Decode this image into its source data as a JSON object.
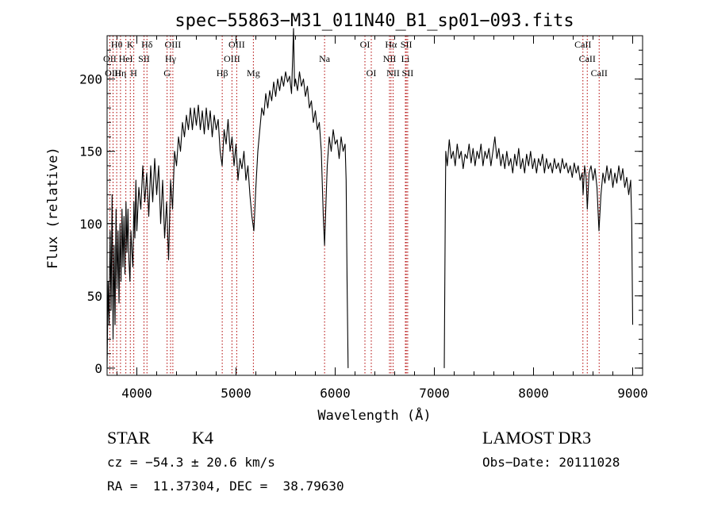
{
  "chart_data": {
    "type": "line",
    "title": "spec−55863−M31_011N40_B1_sp01−093.fits",
    "xlabel": "Wavelength (Å)",
    "ylabel": "Flux (relative)",
    "xlim": [
      3700,
      9100
    ],
    "ylim": [
      -5,
      230
    ],
    "xticks": [
      4000,
      5000,
      6000,
      7000,
      8000,
      9000
    ],
    "yticks": [
      0,
      50,
      100,
      150,
      200
    ],
    "x_minor_step": 200,
    "y_minor_step": 10,
    "lines": [
      {
        "label": "Hθ",
        "wave": 3797,
        "row": 0
      },
      {
        "label": "OII",
        "wave": 3727,
        "row": 1
      },
      {
        "label": "OIII",
        "wave": 3760,
        "row": 2
      },
      {
        "label": "Hη",
        "wave": 3835,
        "row": 2
      },
      {
        "label": "HeI",
        "wave": 3889,
        "row": 1
      },
      {
        "label": "K",
        "wave": 3934,
        "row": 0
      },
      {
        "label": "H",
        "wave": 3969,
        "row": 2
      },
      {
        "label": "SII",
        "wave": 4072,
        "row": 1
      },
      {
        "label": "Hδ",
        "wave": 4102,
        "row": 0
      },
      {
        "label": "OIII",
        "wave": 4363,
        "row": 0
      },
      {
        "label": "Hγ",
        "wave": 4340,
        "row": 1
      },
      {
        "label": "G",
        "wave": 4305,
        "row": 2
      },
      {
        "label": "Hβ",
        "wave": 4861,
        "row": 2
      },
      {
        "label": "OIII",
        "wave": 5007,
        "row": 0
      },
      {
        "label": "OIII",
        "wave": 4959,
        "row": 1
      },
      {
        "label": "Mg",
        "wave": 5175,
        "row": 2
      },
      {
        "label": "Na",
        "wave": 5893,
        "row": 1
      },
      {
        "label": "OI",
        "wave": 6300,
        "row": 0
      },
      {
        "label": "OI",
        "wave": 6364,
        "row": 2
      },
      {
        "label": "Hα",
        "wave": 6563,
        "row": 0
      },
      {
        "label": "NII",
        "wave": 6548,
        "row": 1
      },
      {
        "label": "NII",
        "wave": 6584,
        "row": 2
      },
      {
        "label": "SII",
        "wave": 6717,
        "row": 0
      },
      {
        "label": "Li",
        "wave": 6708,
        "row": 1
      },
      {
        "label": "SII",
        "wave": 6731,
        "row": 2
      },
      {
        "label": "CaII",
        "wave": 8498,
        "row": 0
      },
      {
        "label": "CaII",
        "wave": 8542,
        "row": 1
      },
      {
        "label": "CaII",
        "wave": 8662,
        "row": 2
      }
    ],
    "spectrum_segments": [
      [
        [
          3700,
          0
        ],
        [
          3710,
          60
        ],
        [
          3720,
          30
        ],
        [
          3730,
          95
        ],
        [
          3740,
          40
        ],
        [
          3750,
          120
        ],
        [
          3760,
          20
        ],
        [
          3770,
          85
        ],
        [
          3780,
          30
        ],
        [
          3790,
          110
        ],
        [
          3800,
          55
        ],
        [
          3810,
          95
        ],
        [
          3820,
          45
        ],
        [
          3830,
          100
        ],
        [
          3840,
          60
        ],
        [
          3850,
          110
        ],
        [
          3860,
          70
        ],
        [
          3870,
          105
        ],
        [
          3880,
          65
        ],
        [
          3890,
          115
        ],
        [
          3900,
          80
        ],
        [
          3910,
          110
        ],
        [
          3920,
          75
        ],
        [
          3930,
          60
        ],
        [
          3940,
          95
        ],
        [
          3950,
          80
        ],
        [
          3960,
          70
        ],
        [
          3970,
          115
        ],
        [
          3980,
          90
        ],
        [
          3990,
          130
        ],
        [
          4000,
          95
        ],
        [
          4020,
          125
        ],
        [
          4040,
          110
        ],
        [
          4060,
          140
        ],
        [
          4080,
          115
        ],
        [
          4100,
          135
        ],
        [
          4120,
          105
        ],
        [
          4140,
          140
        ],
        [
          4160,
          115
        ],
        [
          4180,
          145
        ],
        [
          4200,
          120
        ],
        [
          4220,
          140
        ],
        [
          4240,
          100
        ],
        [
          4260,
          130
        ],
        [
          4280,
          90
        ],
        [
          4300,
          115
        ],
        [
          4320,
          75
        ],
        [
          4340,
          130
        ],
        [
          4360,
          110
        ],
        [
          4380,
          150
        ],
        [
          4400,
          140
        ],
        [
          4420,
          160
        ],
        [
          4440,
          150
        ],
        [
          4460,
          170
        ],
        [
          4480,
          160
        ],
        [
          4500,
          175
        ],
        [
          4520,
          165
        ],
        [
          4540,
          180
        ],
        [
          4560,
          165
        ],
        [
          4580,
          180
        ],
        [
          4600,
          168
        ],
        [
          4620,
          182
        ],
        [
          4640,
          165
        ],
        [
          4660,
          178
        ],
        [
          4680,
          162
        ],
        [
          4700,
          180
        ],
        [
          4720,
          165
        ],
        [
          4740,
          178
        ],
        [
          4760,
          160
        ],
        [
          4780,
          175
        ],
        [
          4800,
          165
        ],
        [
          4820,
          172
        ],
        [
          4840,
          150
        ],
        [
          4860,
          140
        ],
        [
          4880,
          165
        ],
        [
          4900,
          155
        ],
        [
          4920,
          172
        ],
        [
          4940,
          150
        ],
        [
          4960,
          160
        ],
        [
          4980,
          140
        ],
        [
          5000,
          155
        ],
        [
          5020,
          130
        ],
        [
          5040,
          145
        ],
        [
          5060,
          138
        ],
        [
          5080,
          150
        ],
        [
          5100,
          130
        ],
        [
          5120,
          140
        ],
        [
          5140,
          120
        ],
        [
          5160,
          105
        ],
        [
          5180,
          95
        ],
        [
          5200,
          125
        ],
        [
          5220,
          150
        ],
        [
          5240,
          165
        ],
        [
          5260,
          180
        ],
        [
          5280,
          175
        ],
        [
          5300,
          190
        ],
        [
          5320,
          180
        ],
        [
          5340,
          192
        ],
        [
          5360,
          185
        ],
        [
          5380,
          198
        ],
        [
          5400,
          188
        ],
        [
          5420,
          200
        ],
        [
          5440,
          192
        ],
        [
          5460,
          202
        ],
        [
          5480,
          195
        ],
        [
          5500,
          205
        ],
        [
          5520,
          198
        ],
        [
          5540,
          202
        ],
        [
          5560,
          190
        ],
        [
          5580,
          235
        ],
        [
          5590,
          195
        ],
        [
          5600,
          200
        ],
        [
          5620,
          192
        ],
        [
          5640,
          205
        ],
        [
          5660,
          195
        ],
        [
          5680,
          200
        ],
        [
          5700,
          188
        ],
        [
          5720,
          195
        ],
        [
          5740,
          180
        ],
        [
          5760,
          185
        ],
        [
          5780,
          170
        ],
        [
          5800,
          178
        ],
        [
          5820,
          165
        ],
        [
          5840,
          170
        ],
        [
          5860,
          150
        ],
        [
          5880,
          105
        ],
        [
          5893,
          85
        ],
        [
          5905,
          110
        ],
        [
          5920,
          140
        ],
        [
          5940,
          160
        ],
        [
          5960,
          150
        ],
        [
          5980,
          165
        ],
        [
          6000,
          155
        ],
        [
          6020,
          158
        ],
        [
          6040,
          145
        ],
        [
          6060,
          160
        ],
        [
          6080,
          150
        ],
        [
          6100,
          155
        ],
        [
          6110,
          130
        ],
        [
          6120,
          60
        ],
        [
          6130,
          0
        ]
      ],
      [
        [
          7100,
          0
        ],
        [
          7110,
          110
        ],
        [
          7115,
          150
        ],
        [
          7130,
          140
        ],
        [
          7150,
          158
        ],
        [
          7170,
          145
        ],
        [
          7190,
          150
        ],
        [
          7210,
          140
        ],
        [
          7230,
          155
        ],
        [
          7250,
          145
        ],
        [
          7270,
          150
        ],
        [
          7290,
          138
        ],
        [
          7310,
          148
        ],
        [
          7330,
          145
        ],
        [
          7350,
          155
        ],
        [
          7370,
          142
        ],
        [
          7390,
          152
        ],
        [
          7410,
          140
        ],
        [
          7430,
          150
        ],
        [
          7450,
          145
        ],
        [
          7470,
          155
        ],
        [
          7490,
          140
        ],
        [
          7510,
          150
        ],
        [
          7530,
          145
        ],
        [
          7550,
          152
        ],
        [
          7570,
          140
        ],
        [
          7590,
          150
        ],
        [
          7610,
          160
        ],
        [
          7630,
          145
        ],
        [
          7650,
          152
        ],
        [
          7670,
          140
        ],
        [
          7690,
          148
        ],
        [
          7710,
          138
        ],
        [
          7730,
          150
        ],
        [
          7750,
          140
        ],
        [
          7770,
          145
        ],
        [
          7790,
          135
        ],
        [
          7810,
          148
        ],
        [
          7830,
          140
        ],
        [
          7850,
          152
        ],
        [
          7870,
          138
        ],
        [
          7890,
          145
        ],
        [
          7910,
          135
        ],
        [
          7930,
          148
        ],
        [
          7950,
          140
        ],
        [
          7970,
          150
        ],
        [
          7990,
          138
        ],
        [
          8010,
          145
        ],
        [
          8030,
          135
        ],
        [
          8050,
          145
        ],
        [
          8070,
          140
        ],
        [
          8090,
          148
        ],
        [
          8110,
          135
        ],
        [
          8130,
          145
        ],
        [
          8150,
          138
        ],
        [
          8170,
          142
        ],
        [
          8190,
          135
        ],
        [
          8210,
          145
        ],
        [
          8230,
          138
        ],
        [
          8250,
          142
        ],
        [
          8270,
          135
        ],
        [
          8290,
          145
        ],
        [
          8310,
          138
        ],
        [
          8330,
          142
        ],
        [
          8350,
          135
        ],
        [
          8370,
          140
        ],
        [
          8390,
          132
        ],
        [
          8410,
          142
        ],
        [
          8430,
          135
        ],
        [
          8450,
          140
        ],
        [
          8470,
          130
        ],
        [
          8490,
          135
        ],
        [
          8500,
          120
        ],
        [
          8515,
          140
        ],
        [
          8530,
          132
        ],
        [
          8542,
          110
        ],
        [
          8560,
          135
        ],
        [
          8580,
          140
        ],
        [
          8600,
          130
        ],
        [
          8620,
          138
        ],
        [
          8640,
          125
        ],
        [
          8660,
          95
        ],
        [
          8680,
          120
        ],
        [
          8700,
          135
        ],
        [
          8720,
          128
        ],
        [
          8740,
          140
        ],
        [
          8760,
          130
        ],
        [
          8780,
          138
        ],
        [
          8800,
          125
        ],
        [
          8820,
          135
        ],
        [
          8840,
          128
        ],
        [
          8860,
          140
        ],
        [
          8880,
          130
        ],
        [
          8900,
          138
        ],
        [
          8920,
          125
        ],
        [
          8940,
          132
        ],
        [
          8960,
          120
        ],
        [
          8980,
          130
        ],
        [
          8990,
          100
        ],
        [
          9000,
          30
        ]
      ]
    ]
  },
  "info": {
    "object_class": "STAR",
    "subclass": "K4",
    "survey": "LAMOST DR3",
    "redshift_text": "cz = −54.3 ± 20.6 km/s",
    "obs_date": "Obs−Date: 20111028",
    "coords_text": "RA =  11.37304, DEC =  38.79630"
  }
}
